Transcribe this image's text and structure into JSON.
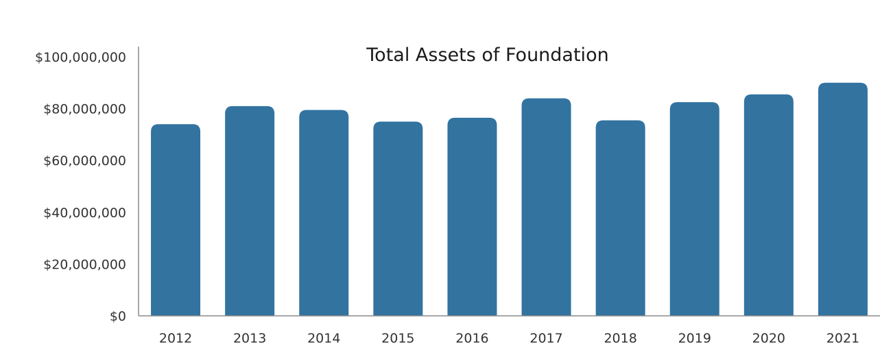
{
  "chart_data": {
    "type": "bar",
    "title": "Total Assets of Foundation",
    "xlabel": "",
    "ylabel": "",
    "categories": [
      "2012",
      "2013",
      "2014",
      "2015",
      "2016",
      "2017",
      "2018",
      "2019",
      "2020",
      "2021"
    ],
    "values": [
      74000000,
      81000000,
      79500000,
      75000000,
      76500000,
      84000000,
      75500000,
      82500000,
      85500000,
      90000000
    ],
    "ylim": [
      0,
      100000000
    ],
    "yticks": [
      0,
      20000000,
      40000000,
      60000000,
      80000000,
      100000000
    ],
    "ytick_labels": [
      "$0",
      "$20,000,000",
      "$40,000,000",
      "$60,000,000",
      "$80,000,000",
      "$100,000,000"
    ],
    "bar_color": "#3273a0",
    "grid": false,
    "legend": "none"
  }
}
